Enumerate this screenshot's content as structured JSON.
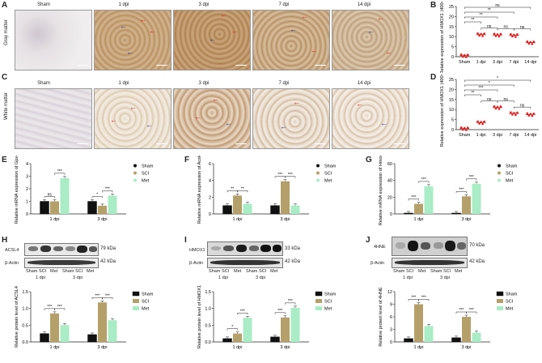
{
  "panels": {
    "A": "A",
    "B": "B",
    "C": "C",
    "D": "D",
    "E": "E",
    "F": "F",
    "G": "G",
    "H": "H",
    "I": "I",
    "J": "J"
  },
  "tissues": {
    "gray": "Gray matter",
    "white": "White matter"
  },
  "timepoints": [
    "Sham",
    "1 dpi",
    "3 dpi",
    "7 dpi",
    "14 dpi"
  ],
  "colors": {
    "sham": "#111111",
    "sci": "#b5a06a",
    "met": "#a9ecc6",
    "red_series": "#e02020",
    "arrow_red": "#e02020",
    "arrow_blue": "#1d2fa0"
  },
  "legend": [
    "Sham",
    "SCI",
    "Met"
  ],
  "chart_data": [
    {
      "id": "B",
      "type": "scatter",
      "categories": [
        "Sham",
        "1 dpi",
        "3 dpi",
        "7 dpi",
        "14 dpi"
      ],
      "values": [
        0.5,
        11,
        10.8,
        10.6,
        7
      ],
      "ylabel": "Relative expression of HMOX1 (400× field)",
      "ylim": [
        0,
        25
      ],
      "yticks": [
        0,
        5,
        10,
        15,
        20,
        25
      ],
      "sig": [
        {
          "a": 0,
          "b": 4,
          "label": "ns"
        },
        {
          "a": 0,
          "b": 3,
          "label": "**"
        },
        {
          "a": 0,
          "b": 2,
          "label": "**"
        },
        {
          "a": 0,
          "b": 1,
          "label": "**"
        },
        {
          "a": 1,
          "b": 2,
          "label": "ns"
        },
        {
          "a": 2,
          "b": 3,
          "label": "ns"
        },
        {
          "a": 3,
          "b": 4,
          "label": "ns"
        }
      ]
    },
    {
      "id": "D",
      "type": "scatter",
      "categories": [
        "Sham",
        "1 dpi",
        "3 dpi",
        "7 dpi",
        "14 dpi"
      ],
      "values": [
        0.5,
        3.5,
        11,
        8,
        7.5
      ],
      "ylabel": "Relative expression of HMOX1 (400× field)",
      "ylim": [
        0,
        25
      ],
      "yticks": [
        0,
        5,
        10,
        15,
        20,
        25
      ],
      "sig": [
        {
          "a": 0,
          "b": 4,
          "label": "*"
        },
        {
          "a": 0,
          "b": 3,
          "label": "*"
        },
        {
          "a": 0,
          "b": 2,
          "label": "***"
        },
        {
          "a": 0,
          "b": 1,
          "label": "**"
        },
        {
          "a": 1,
          "b": 2,
          "label": "ns"
        },
        {
          "a": 2,
          "b": 3,
          "label": "ns"
        },
        {
          "a": 3,
          "b": 4,
          "label": "ns"
        }
      ]
    },
    {
      "id": "E",
      "type": "bar",
      "categories": [
        "1 dpi",
        "3 dpi"
      ],
      "series": [
        {
          "name": "Sham",
          "values": [
            1.0,
            1.0
          ]
        },
        {
          "name": "SCI",
          "values": [
            1.0,
            0.65
          ]
        },
        {
          "name": "Met",
          "values": [
            2.85,
            1.45
          ]
        }
      ],
      "ylabel": "Relative mRNA expression of Gpx4",
      "ylim": [
        0,
        4
      ],
      "yticks": [
        0,
        1,
        2,
        3,
        4
      ],
      "sig": [
        {
          "g": 0,
          "a": 0,
          "b": 1,
          "label": "ns"
        },
        {
          "g": 0,
          "a": 1,
          "b": 2,
          "label": "***"
        },
        {
          "g": 1,
          "a": 0,
          "b": 1,
          "label": "*"
        },
        {
          "g": 1,
          "a": 1,
          "b": 2,
          "label": "***"
        }
      ]
    },
    {
      "id": "F",
      "type": "bar",
      "categories": [
        "1 dpi",
        "3 dpi"
      ],
      "series": [
        {
          "name": "Sham",
          "values": [
            1.0,
            1.0
          ]
        },
        {
          "name": "SCI",
          "values": [
            2.2,
            3.9
          ]
        },
        {
          "name": "Met",
          "values": [
            1.2,
            1.0
          ]
        }
      ],
      "ylabel": "Relative mRNA expression of Acsl4",
      "ylim": [
        0,
        6
      ],
      "yticks": [
        0,
        2,
        4,
        6
      ],
      "sig": [
        {
          "g": 0,
          "a": 0,
          "b": 1,
          "label": "**"
        },
        {
          "g": 0,
          "a": 1,
          "b": 2,
          "label": "**"
        },
        {
          "g": 1,
          "a": 0,
          "b": 1,
          "label": "***"
        },
        {
          "g": 1,
          "a": 1,
          "b": 2,
          "label": "***"
        }
      ]
    },
    {
      "id": "G",
      "type": "bar",
      "categories": [
        "1 dpi",
        "3 dpi"
      ],
      "series": [
        {
          "name": "Sham",
          "values": [
            1.0,
            1.0
          ]
        },
        {
          "name": "SCI",
          "values": [
            12,
            21
          ]
        },
        {
          "name": "Met",
          "values": [
            33,
            36
          ]
        }
      ],
      "ylabel": "Relative mRNA expression of Hmox1",
      "ylim": [
        0,
        60
      ],
      "yticks": [
        0,
        20,
        40,
        60
      ],
      "sig": [
        {
          "g": 0,
          "a": 0,
          "b": 1,
          "label": "***"
        },
        {
          "g": 0,
          "a": 1,
          "b": 2,
          "label": "***"
        },
        {
          "g": 1,
          "a": 0,
          "b": 1,
          "label": "***"
        },
        {
          "g": 1,
          "a": 1,
          "b": 2,
          "label": "***"
        }
      ]
    },
    {
      "id": "H",
      "type": "bar",
      "categories": [
        "1 dpi",
        "3 dpi"
      ],
      "series": [
        {
          "name": "Sham",
          "values": [
            0.25,
            0.22
          ]
        },
        {
          "name": "SCI",
          "values": [
            0.85,
            1.18
          ]
        },
        {
          "name": "Met",
          "values": [
            0.5,
            0.65
          ]
        }
      ],
      "ylabel": "Relative protein level of ACSL4",
      "ylim": [
        0,
        1.5
      ],
      "yticks": [
        0.0,
        0.5,
        1.0,
        1.5
      ],
      "sig": [
        {
          "g": 0,
          "a": 0,
          "b": 1,
          "label": "***"
        },
        {
          "g": 0,
          "a": 1,
          "b": 2,
          "label": "***"
        },
        {
          "g": 1,
          "a": 0,
          "b": 1,
          "label": "***"
        },
        {
          "g": 1,
          "a": 1,
          "b": 2,
          "label": "***"
        }
      ]
    },
    {
      "id": "I",
      "type": "bar",
      "categories": [
        "1 dpi",
        "3 dpi"
      ],
      "series": [
        {
          "name": "Sham",
          "values": [
            0.1,
            0.15
          ]
        },
        {
          "name": "SCI",
          "values": [
            0.25,
            0.73
          ]
        },
        {
          "name": "Met",
          "values": [
            0.72,
            1.02
          ]
        }
      ],
      "ylabel": "Relative protein level of HMOX1",
      "ylim": [
        0,
        1.5
      ],
      "yticks": [
        0.0,
        0.5,
        1.0,
        1.5
      ],
      "sig": [
        {
          "g": 0,
          "a": 0,
          "b": 1,
          "label": "*"
        },
        {
          "g": 0,
          "a": 1,
          "b": 2,
          "label": "***"
        },
        {
          "g": 1,
          "a": 0,
          "b": 1,
          "label": "***"
        },
        {
          "g": 1,
          "a": 1,
          "b": 2,
          "label": "***"
        }
      ]
    },
    {
      "id": "J",
      "type": "bar",
      "categories": [
        "1 dpi",
        "3 dpi"
      ],
      "series": [
        {
          "name": "Sham",
          "values": [
            0.8,
            1.0
          ]
        },
        {
          "name": "SCI",
          "values": [
            9.0,
            6.0
          ]
        },
        {
          "name": "Met",
          "values": [
            3.8,
            2.2
          ]
        }
      ],
      "ylabel": "Relative protein level of 4HNE",
      "ylim": [
        0,
        12
      ],
      "yticks": [
        0,
        3,
        6,
        9,
        12
      ],
      "sig": [
        {
          "g": 0,
          "a": 0,
          "b": 1,
          "label": "***"
        },
        {
          "g": 0,
          "a": 1,
          "b": 2,
          "label": "***"
        },
        {
          "g": 1,
          "a": 0,
          "b": 1,
          "label": "***"
        },
        {
          "g": 1,
          "a": 1,
          "b": 2,
          "label": "***"
        }
      ]
    }
  ],
  "blots": {
    "H": {
      "target": "ACSL4",
      "target_kda": "79 kDa",
      "control": "β-Actin",
      "control_kda": "42 kDa"
    },
    "I": {
      "target": "HMOX1",
      "target_kda": "33 kDa",
      "control": "β-Actin",
      "control_kda": "42 kDa"
    },
    "J": {
      "target": "4HNE",
      "target_kda": "70 kDa",
      "control": "β-Actin",
      "control_kda": "42 kDa"
    },
    "lanes": [
      "Sham",
      "SCI",
      "Met",
      "Sham",
      "SCI",
      "Met"
    ],
    "groups": [
      "1 dpi",
      "3 dpi"
    ]
  }
}
